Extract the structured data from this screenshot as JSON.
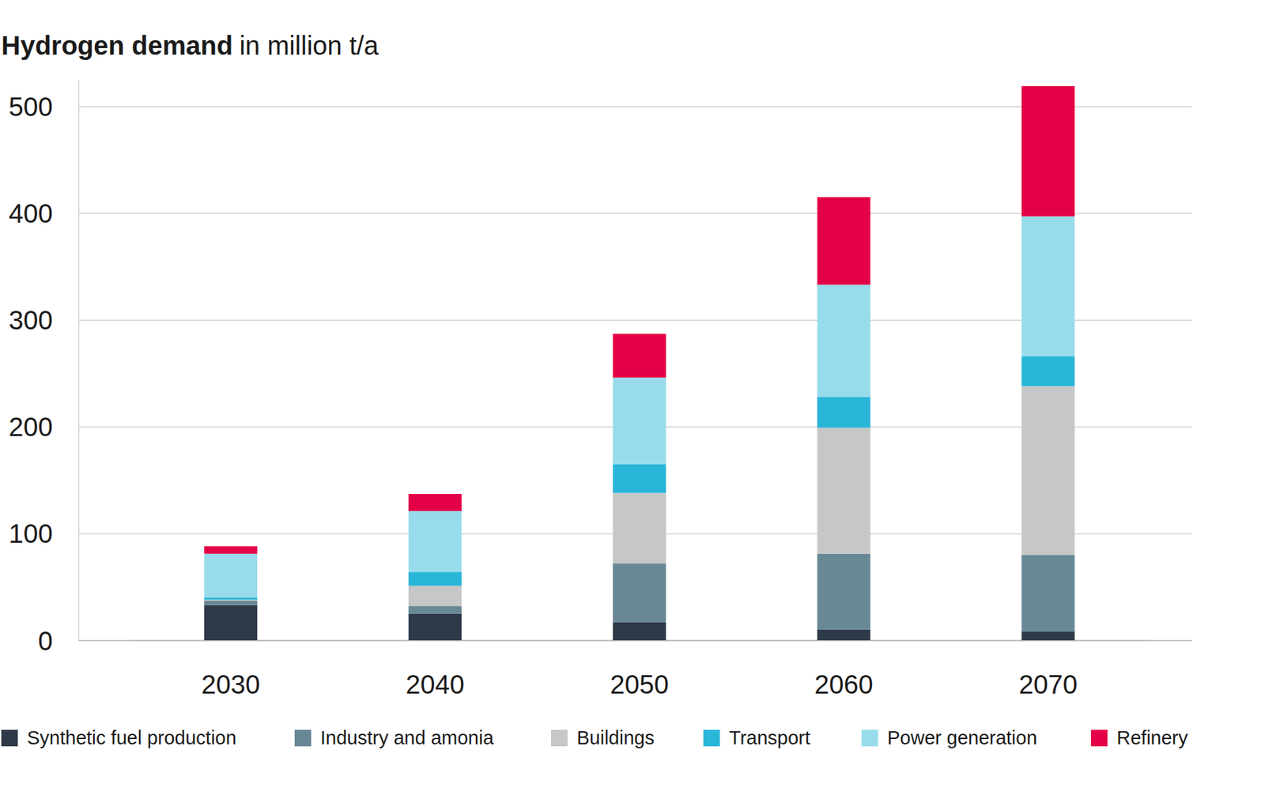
{
  "chart_data": {
    "type": "bar",
    "stacked": true,
    "grid": true,
    "legend": "bottom",
    "title": "Hydrogen demand",
    "y_label": "in million t/a",
    "categories": [
      "2030",
      "2040",
      "2050",
      "2060",
      "2070"
    ],
    "ylim": [
      0,
      525
    ],
    "yticks": [
      0,
      100,
      200,
      300,
      400,
      500
    ],
    "series": [
      {
        "name": "Synthetic fuel production",
        "color": "#2e3a48",
        "values": [
          33,
          25,
          17,
          10,
          8
        ]
      },
      {
        "name": "Industry and amonia",
        "color": "#688895",
        "values": [
          4,
          7,
          55,
          71,
          72
        ]
      },
      {
        "name": "Buildings",
        "color": "#c6c7c7",
        "values": [
          1,
          19,
          66,
          118,
          158
        ]
      },
      {
        "name": "Transport",
        "color": "#29b6d8",
        "values": [
          2,
          13,
          27,
          29,
          28
        ]
      },
      {
        "name": "Power generation",
        "color": "#98dceb",
        "values": [
          41,
          57,
          81,
          105,
          131
        ]
      },
      {
        "name": "Refinery",
        "color": "#e30046",
        "values": [
          7,
          16,
          41,
          82,
          122
        ]
      }
    ]
  }
}
